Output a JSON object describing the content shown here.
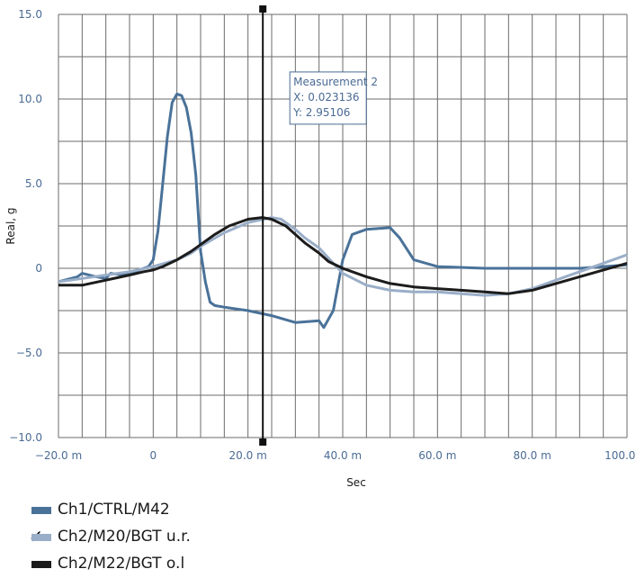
{
  "chart_data": {
    "type": "line",
    "xlabel": "Sec",
    "ylabel": "Real, g",
    "xlim": [
      -0.02,
      0.1
    ],
    "ylim": [
      -10,
      15
    ],
    "x_ticks": [
      {
        "value": -0.02,
        "label": "−20.0 m"
      },
      {
        "value": 0.0,
        "label": "0"
      },
      {
        "value": 0.02,
        "label": "20.0 m"
      },
      {
        "value": 0.04,
        "label": "40.0 m"
      },
      {
        "value": 0.06,
        "label": "60.0 m"
      },
      {
        "value": 0.08,
        "label": "80.0 m"
      },
      {
        "value": 0.1,
        "label": "100.0 m"
      }
    ],
    "y_ticks": [
      {
        "value": 15,
        "label": "15.0"
      },
      {
        "value": 10,
        "label": "10.0"
      },
      {
        "value": 5,
        "label": "5.0"
      },
      {
        "value": 0,
        "label": "0"
      },
      {
        "value": -5,
        "label": "−5.0"
      },
      {
        "value": -10,
        "label": "−10.0"
      }
    ],
    "grid": true,
    "cursor": {
      "x": 0.023136,
      "y": 2.95106
    },
    "annotation": {
      "title": "Measurement 2",
      "x_text": "X: 0.023136",
      "y_text": "Y: 2.95106"
    },
    "series": [
      {
        "name": "Ch1/CTRL/M42",
        "color": "#4a7299",
        "checked": false,
        "x": [
          -0.02,
          -0.016,
          -0.015,
          -0.012,
          -0.01,
          -0.009,
          -0.006,
          -0.004,
          -0.002,
          -0.001,
          0.0,
          0.001,
          0.002,
          0.003,
          0.004,
          0.005,
          0.006,
          0.007,
          0.008,
          0.009,
          0.01,
          0.011,
          0.012,
          0.013,
          0.015,
          0.02,
          0.025,
          0.03,
          0.035,
          0.036,
          0.038,
          0.04,
          0.042,
          0.045,
          0.05,
          0.052,
          0.055,
          0.06,
          0.07,
          0.08,
          0.09,
          0.1
        ],
        "y": [
          -0.8,
          -0.5,
          -0.3,
          -0.5,
          -0.6,
          -0.3,
          -0.4,
          -0.2,
          0.0,
          0.1,
          0.5,
          2.2,
          5.0,
          7.8,
          9.8,
          10.3,
          10.2,
          9.5,
          8.0,
          5.5,
          1.0,
          -0.8,
          -2.0,
          -2.2,
          -2.3,
          -2.5,
          -2.8,
          -3.2,
          -3.1,
          -3.5,
          -2.5,
          0.5,
          2.0,
          2.3,
          2.4,
          1.8,
          0.5,
          0.1,
          0.0,
          0.0,
          0.0,
          0.2
        ]
      },
      {
        "name": "Ch2/M20/BGT u.r.",
        "color": "#9aaec8",
        "checked": true,
        "x": [
          -0.02,
          -0.015,
          -0.01,
          -0.005,
          0.0,
          0.005,
          0.008,
          0.01,
          0.015,
          0.02,
          0.025,
          0.027,
          0.03,
          0.032,
          0.035,
          0.037,
          0.04,
          0.045,
          0.05,
          0.055,
          0.06,
          0.065,
          0.07,
          0.075,
          0.08,
          0.085,
          0.09,
          0.095,
          0.1
        ],
        "y": [
          -0.8,
          -0.6,
          -0.4,
          -0.2,
          0.1,
          0.5,
          0.9,
          1.3,
          2.1,
          2.7,
          3.0,
          2.9,
          2.3,
          1.8,
          1.2,
          0.6,
          -0.3,
          -1.0,
          -1.3,
          -1.4,
          -1.4,
          -1.5,
          -1.6,
          -1.5,
          -1.2,
          -0.7,
          -0.2,
          0.3,
          0.8
        ]
      },
      {
        "name": "Ch2/M22/BGT o.l",
        "color": "#1c1c1c",
        "checked": false,
        "x": [
          -0.02,
          -0.015,
          -0.01,
          -0.005,
          -0.002,
          0.0,
          0.002,
          0.005,
          0.008,
          0.01,
          0.013,
          0.016,
          0.02,
          0.023,
          0.025,
          0.028,
          0.03,
          0.032,
          0.035,
          0.037,
          0.04,
          0.045,
          0.05,
          0.055,
          0.06,
          0.065,
          0.07,
          0.075,
          0.08,
          0.085,
          0.09,
          0.095,
          0.1
        ],
        "y": [
          -1.0,
          -1.0,
          -0.7,
          -0.4,
          -0.2,
          -0.1,
          0.1,
          0.5,
          1.0,
          1.4,
          2.0,
          2.5,
          2.9,
          3.0,
          2.9,
          2.5,
          2.0,
          1.5,
          0.9,
          0.4,
          0.0,
          -0.5,
          -0.9,
          -1.1,
          -1.2,
          -1.3,
          -1.4,
          -1.5,
          -1.3,
          -0.9,
          -0.5,
          -0.1,
          0.3
        ]
      }
    ]
  }
}
